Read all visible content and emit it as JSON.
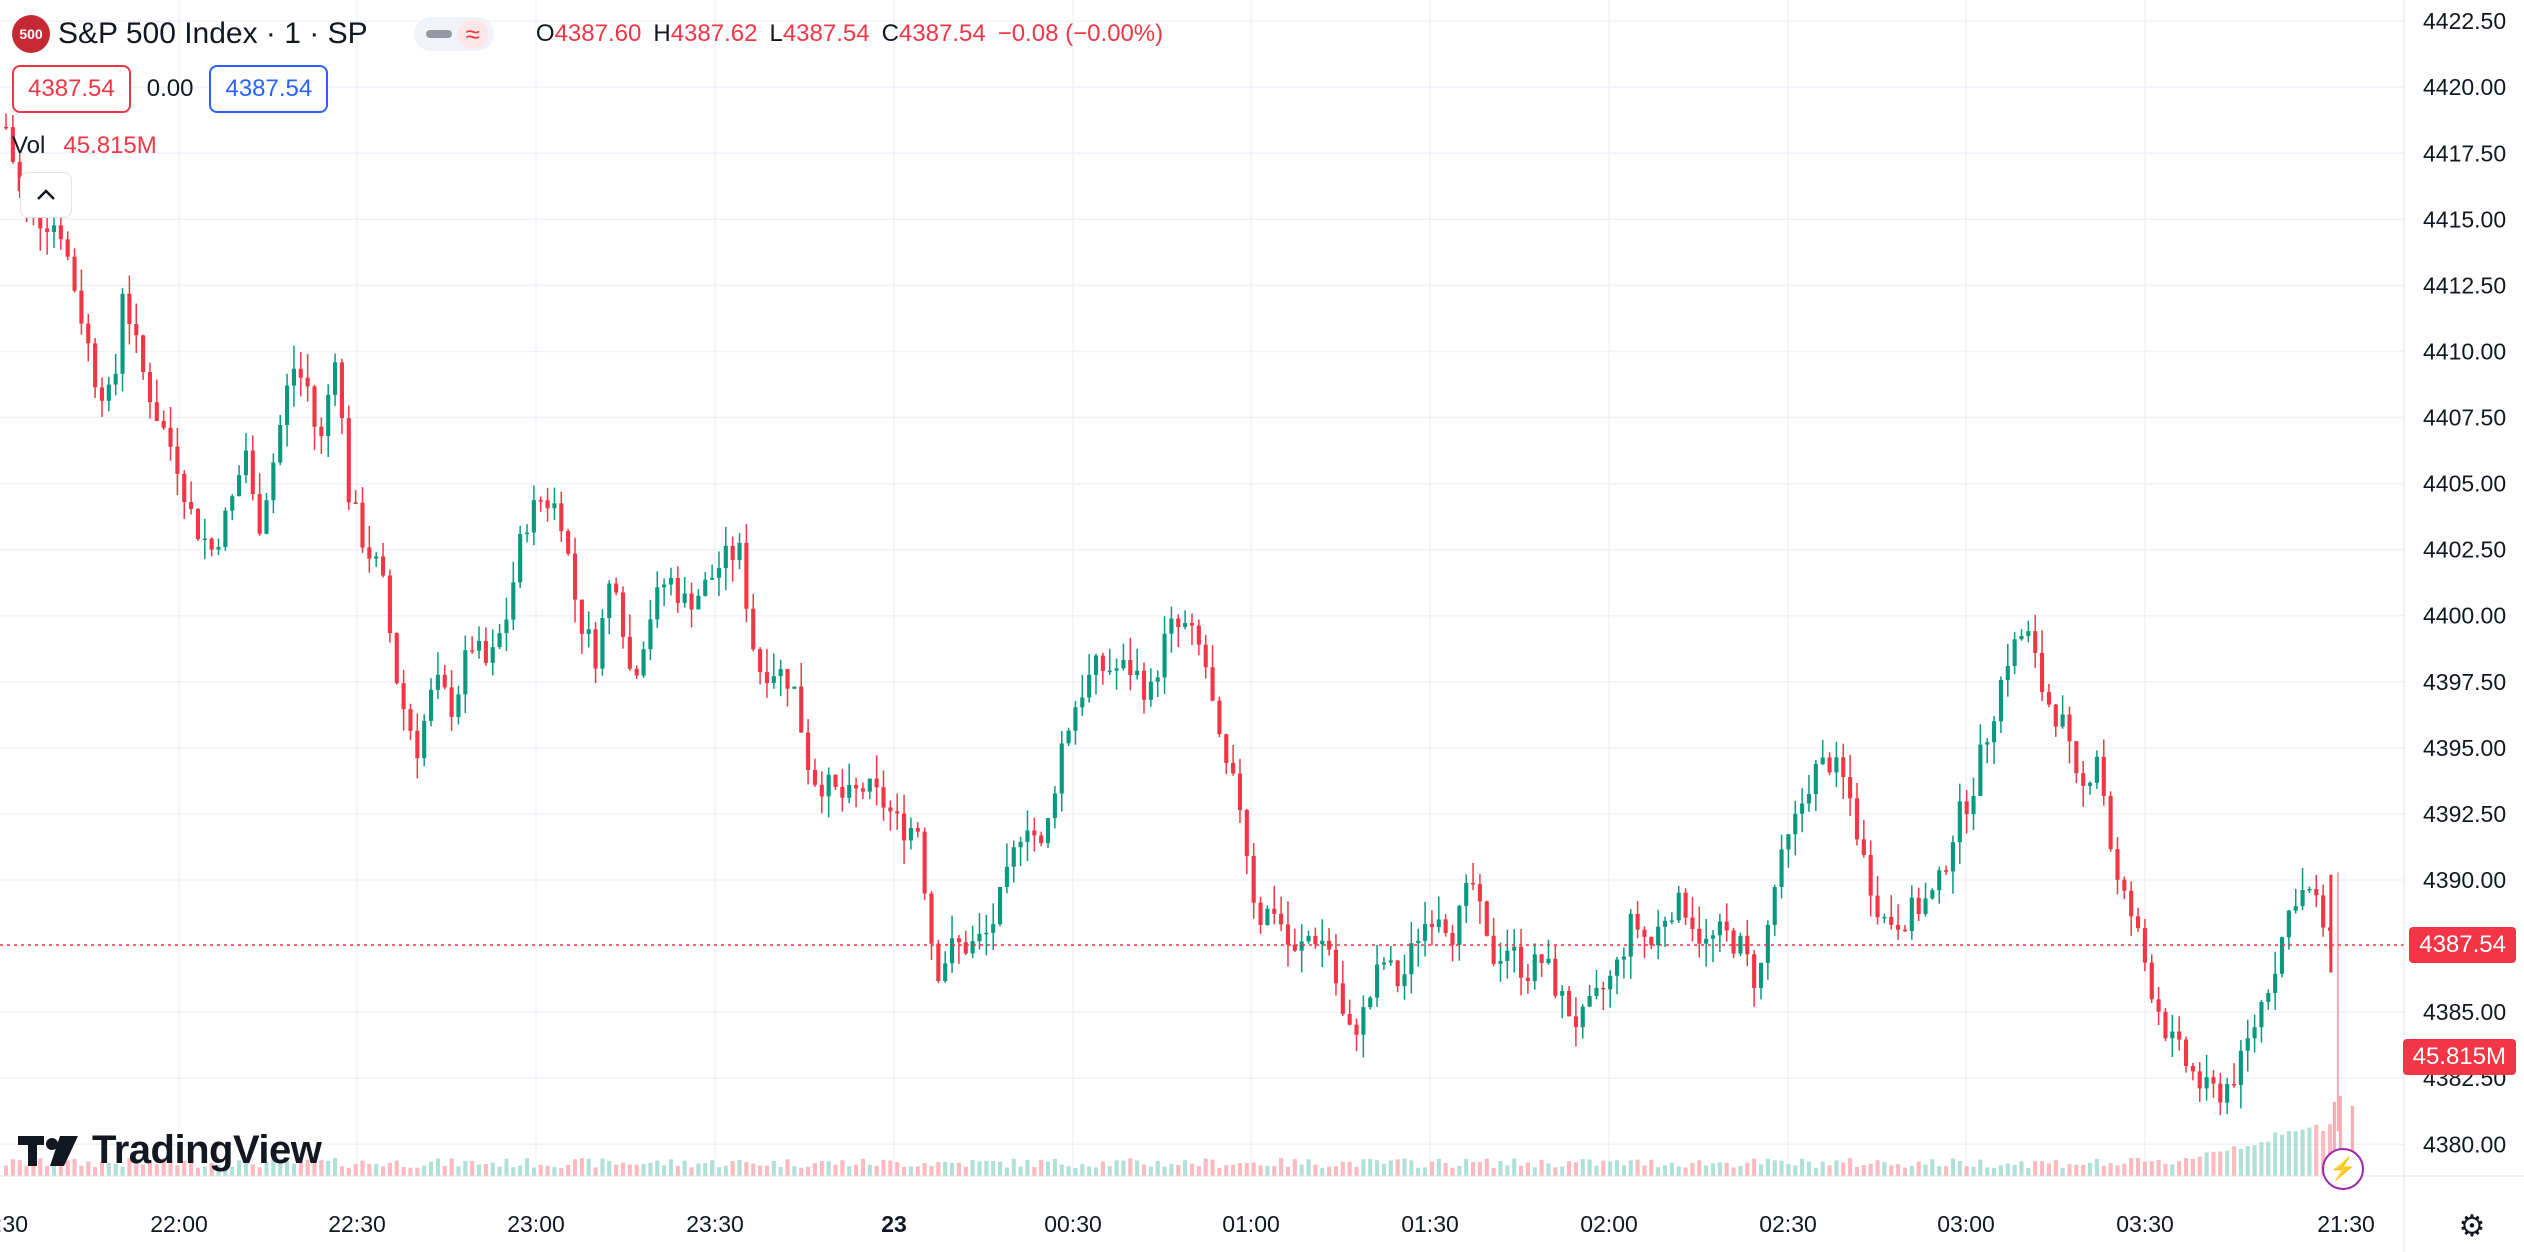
{
  "header": {
    "symbol_badge": "500",
    "symbol_name": "S&P 500 Index · 1 · SP",
    "open_label": "O",
    "open": "4387.60",
    "high_label": "H",
    "high": "4387.62",
    "low_label": "L",
    "low": "4387.54",
    "close_label": "C",
    "close": "4387.54",
    "change": "−0.08 (−0.00%)",
    "bid": "4387.54",
    "spread": "0.00",
    "ask": "4387.54",
    "vol_label": "Vol",
    "vol_value": "45.815M",
    "collapse_icon": "chevron-up-icon",
    "toggle_icons": [
      "minimize-icon",
      "wave-icon"
    ]
  },
  "logo": {
    "text": "TradingView"
  },
  "price_axis": {
    "ticks": [
      "4422.50",
      "4420.00",
      "4417.50",
      "4415.00",
      "4412.50",
      "4410.00",
      "4407.50",
      "4405.00",
      "4402.50",
      "4400.00",
      "4397.50",
      "4395.00",
      "4392.50",
      "4390.00",
      "4387.50",
      "4385.00",
      "4382.50",
      "4380.00"
    ],
    "last_price_label": "4387.54",
    "volume_label": "45.815M"
  },
  "time_axis": {
    "labels": [
      ":30",
      "22:00",
      "22:30",
      "23:00",
      "23:30",
      "23",
      "00:30",
      "01:00",
      "01:30",
      "02:00",
      "02:30",
      "03:00",
      "03:30",
      "21:30"
    ]
  },
  "colors": {
    "up": "#089981",
    "down": "#f23645",
    "grid": "#f0f3fa",
    "text": "#131722"
  },
  "chart_data": {
    "type": "candlestick",
    "title": "S&P 500 Index · 1 · SP",
    "y_range": [
      4378.8,
      4423.3
    ],
    "y_ticks": [
      4380.0,
      4382.5,
      4385.0,
      4387.5,
      4390.0,
      4392.5,
      4395.0,
      4397.5,
      4400.0,
      4402.5,
      4405.0,
      4407.5,
      4410.0,
      4412.5,
      4415.0,
      4417.5,
      4420.0,
      4422.5
    ],
    "x_ticks": [
      ":30",
      "22:00",
      "22:30",
      "23:00",
      "23:30",
      "23",
      "00:30",
      "01:00",
      "01:30",
      "02:00",
      "02:30",
      "03:00",
      "03:30",
      "21:30"
    ],
    "close_path": [
      [
        0,
        4418.5
      ],
      [
        2,
        4415.2
      ],
      [
        4,
        4415.0
      ],
      [
        6,
        4414.8
      ],
      [
        8,
        4412.0
      ],
      [
        10,
        4409.0
      ],
      [
        12,
        4408.0
      ],
      [
        13,
        4412.5
      ],
      [
        15,
        4409.5
      ],
      [
        17,
        4407.5
      ],
      [
        19,
        4406.0
      ],
      [
        21,
        4403.5
      ],
      [
        23,
        4402.5
      ],
      [
        25,
        4404.0
      ],
      [
        27,
        4406.5
      ],
      [
        28,
        4403.0
      ],
      [
        30,
        4406.0
      ],
      [
        32,
        4409.5
      ],
      [
        34,
        4408.5
      ],
      [
        35,
        4406.0
      ],
      [
        37,
        4410.5
      ],
      [
        38,
        4405.0
      ],
      [
        40,
        4402.8
      ],
      [
        42,
        4401.5
      ],
      [
        44,
        4397.0
      ],
      [
        46,
        4395.0
      ],
      [
        48,
        4397.5
      ],
      [
        50,
        4396.5
      ],
      [
        52,
        4399.0
      ],
      [
        54,
        4398.0
      ],
      [
        56,
        4400.0
      ],
      [
        58,
        4403.5
      ],
      [
        60,
        4404.5
      ],
      [
        62,
        4404.0
      ],
      [
        64,
        4400.0
      ],
      [
        66,
        4398.5
      ],
      [
        68,
        4402.0
      ],
      [
        70,
        4397.5
      ],
      [
        72,
        4400.0
      ],
      [
        74,
        4401.5
      ],
      [
        76,
        4400.5
      ],
      [
        78,
        4401.0
      ],
      [
        80,
        4402.0
      ],
      [
        82,
        4402.5
      ],
      [
        84,
        4398.0
      ],
      [
        86,
        4398.0
      ],
      [
        88,
        4397.5
      ],
      [
        90,
        4394.0
      ],
      [
        92,
        4393.5
      ],
      [
        94,
        4393.0
      ],
      [
        96,
        4393.5
      ],
      [
        98,
        4393.0
      ],
      [
        100,
        4392.0
      ],
      [
        102,
        4392.0
      ],
      [
        104,
        4386.5
      ],
      [
        106,
        4387.5
      ],
      [
        108,
        4387.5
      ],
      [
        110,
        4388.0
      ],
      [
        112,
        4390.0
      ],
      [
        114,
        4392.5
      ],
      [
        116,
        4391.0
      ],
      [
        118,
        4395.0
      ],
      [
        120,
        4397.0
      ],
      [
        122,
        4398.0
      ],
      [
        124,
        4398.0
      ],
      [
        126,
        4398.0
      ],
      [
        128,
        4397.0
      ],
      [
        130,
        4399.5
      ],
      [
        132,
        4399.5
      ],
      [
        134,
        4398.5
      ],
      [
        136,
        4394.5
      ],
      [
        138,
        4393.0
      ],
      [
        140,
        4388.5
      ],
      [
        142,
        4389.0
      ],
      [
        144,
        4387.0
      ],
      [
        146,
        4388.0
      ],
      [
        148,
        4387.5
      ],
      [
        150,
        4384.0
      ],
      [
        152,
        4385.0
      ],
      [
        154,
        4387.0
      ],
      [
        156,
        4386.0
      ],
      [
        158,
        4388.0
      ],
      [
        160,
        4389.0
      ],
      [
        162,
        4388.0
      ],
      [
        164,
        4390.0
      ],
      [
        166,
        4387.0
      ],
      [
        168,
        4387.5
      ],
      [
        170,
        4386.5
      ],
      [
        172,
        4387.0
      ],
      [
        174,
        4385.5
      ],
      [
        176,
        4384.5
      ],
      [
        178,
        4385.5
      ],
      [
        180,
        4386.5
      ],
      [
        182,
        4388.5
      ],
      [
        184,
        4387.5
      ],
      [
        186,
        4389.0
      ],
      [
        188,
        4389.0
      ],
      [
        190,
        4387.5
      ],
      [
        192,
        4388.0
      ],
      [
        194,
        4387.5
      ],
      [
        196,
        4386.0
      ],
      [
        198,
        4390.0
      ],
      [
        200,
        4392.0
      ],
      [
        202,
        4394.0
      ],
      [
        204,
        4394.5
      ],
      [
        206,
        4393.5
      ],
      [
        208,
        4390.5
      ],
      [
        210,
        4388.5
      ],
      [
        212,
        4388.5
      ],
      [
        214,
        4389.0
      ],
      [
        216,
        4389.5
      ],
      [
        218,
        4392.0
      ],
      [
        220,
        4393.5
      ],
      [
        222,
        4396.0
      ],
      [
        224,
        4398.5
      ],
      [
        226,
        4399.5
      ],
      [
        228,
        4397.0
      ],
      [
        230,
        4396.0
      ],
      [
        232,
        4393.0
      ],
      [
        234,
        4395.0
      ],
      [
        236,
        4390.0
      ],
      [
        238,
        4388.5
      ],
      [
        240,
        4386.0
      ],
      [
        242,
        4384.0
      ],
      [
        244,
        4383.0
      ],
      [
        246,
        4382.0
      ],
      [
        248,
        4382.0
      ],
      [
        250,
        4383.0
      ],
      [
        252,
        4385.0
      ],
      [
        254,
        4387.0
      ],
      [
        256,
        4389.5
      ],
      [
        258,
        4389.5
      ],
      [
        260,
        4387.54
      ]
    ],
    "last_price": 4387.54,
    "last_volume": "45.815M",
    "volume_series": "volume bars shown along the bottom; last bar 45.815M"
  }
}
